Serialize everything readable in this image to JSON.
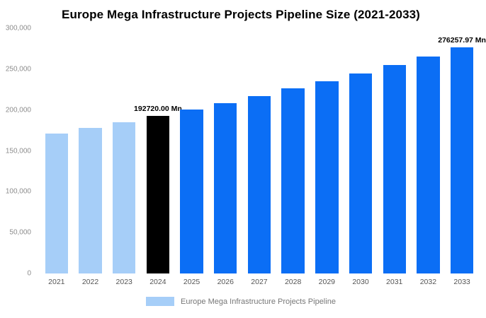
{
  "title": "Europe Mega Infrastructure Projects Pipeline Size (2021-2033)",
  "chart_data": {
    "type": "bar",
    "title": "Europe Mega Infrastructure Projects Pipeline Size (2021-2033)",
    "categories": [
      "2021",
      "2022",
      "2023",
      "2024",
      "2025",
      "2026",
      "2027",
      "2028",
      "2029",
      "2030",
      "2031",
      "2032",
      "2033"
    ],
    "values": [
      170926,
      177903,
      185163,
      192720,
      200584,
      208768,
      217287,
      226152,
      235380,
      244984,
      254980,
      265384,
      276257.97
    ],
    "series_name": "Europe Mega Infrastructure Projects Pipeline",
    "bar_colors": [
      "#A6CEF8",
      "#A6CEF8",
      "#A6CEF8",
      "#000000",
      "#0B6EF5",
      "#0B6EF5",
      "#0B6EF5",
      "#0B6EF5",
      "#0B6EF5",
      "#0B6EF5",
      "#0B6EF5",
      "#0B6EF5",
      "#0B6EF5"
    ],
    "ylim": [
      0,
      300000
    ],
    "ytick_values": [
      0,
      50000,
      100000,
      150000,
      200000,
      250000,
      300000
    ],
    "ytick_labels": [
      "0",
      "50,000",
      "100,000",
      "150,000",
      "200,000",
      "250,000",
      "300,000"
    ],
    "grid": false,
    "xlabel": "",
    "ylabel": "",
    "annotations": [
      {
        "category": "2024",
        "text": "192720.00 Mn"
      },
      {
        "category": "2033",
        "text": "276257.97 Mn"
      }
    ],
    "legend": {
      "label": "Europe Mega Infrastructure Projects Pipeline",
      "swatch_color": "#A6CEF8",
      "position": "bottom"
    }
  }
}
